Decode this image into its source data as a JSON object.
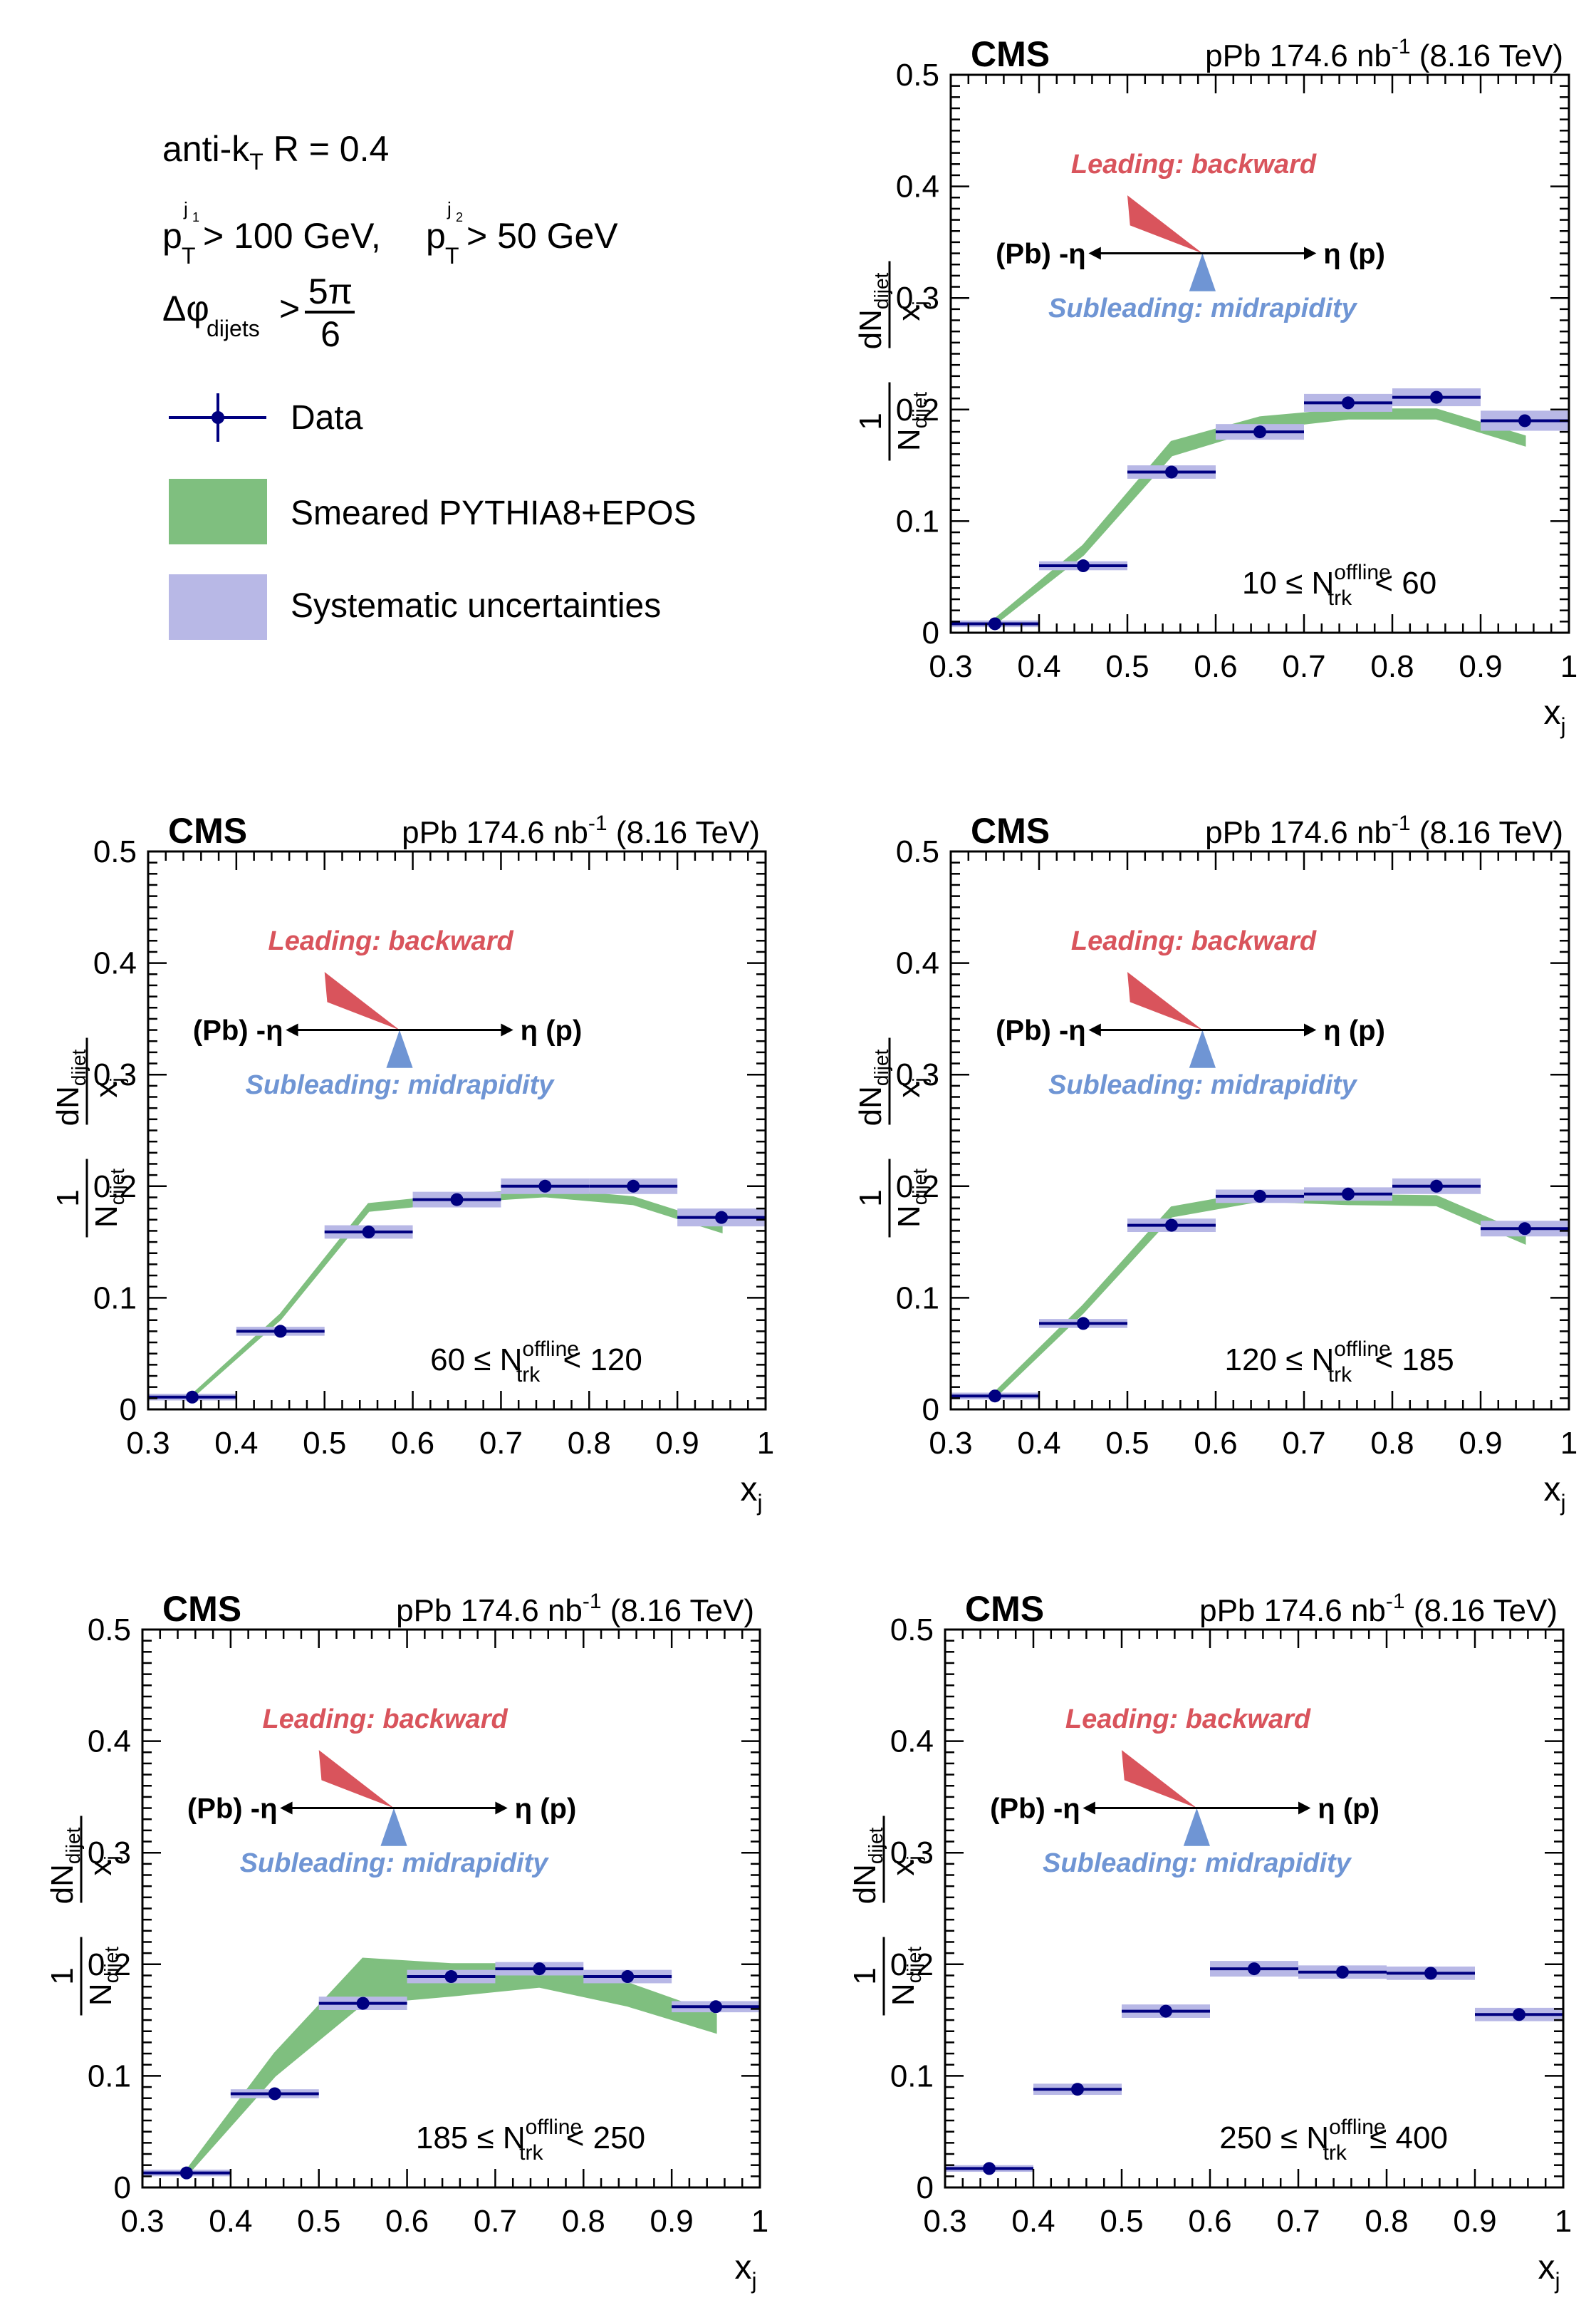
{
  "legend": {
    "algo_prefix": "anti-k",
    "algo_sub": "T",
    "algo_suffix": " R = 0.4",
    "cut_p": "p",
    "cut_j1_sup": "j",
    "cut_j1_supsub": "1",
    "cut_sub": "T",
    "cut_1_text": " > 100 GeV, ",
    "cut_j2_sup": "j",
    "cut_j2_supsub": "2",
    "cut_2_text": " > 50 GeV",
    "dphi_prefix": "Δφ",
    "dphi_sub": "dijets",
    "dphi_gt": ">",
    "dphi_num": "5π",
    "dphi_den": "6",
    "items": [
      {
        "label": "Data",
        "color": "#000080"
      },
      {
        "label": "Smeared PYTHIA8+EPOS",
        "color": "#7fbf7f"
      },
      {
        "label": "Systematic uncertainties",
        "color": "#b8b8e6"
      }
    ]
  },
  "common": {
    "cms": "CMS",
    "lumi_prefix": "pPb 174.6 nb",
    "lumi_sup": "-1",
    "lumi_suffix": " (8.16 TeV)",
    "leading": "Leading: backward",
    "subleading": "Subleading: midrapidity",
    "pb_label": "(Pb) -η",
    "p_label": "η (p)",
    "ylabel_num": "dN",
    "ylabel_num_sub": "dijet",
    "ylabel_den": "x",
    "ylabel_den_sub": "j",
    "ylabel_one": "1",
    "ylabel_N": "N",
    "ylabel_N_sub": "dijet",
    "xlabel": "x",
    "xlabel_sub": "j",
    "n_label": "N",
    "n_sup": "offline",
    "n_sub": "trk",
    "xticks": [
      "0.3",
      "0.4",
      "0.5",
      "0.6",
      "0.7",
      "0.8",
      "0.9",
      "1"
    ],
    "yticks": [
      "0",
      "0.1",
      "0.2",
      "0.3",
      "0.4",
      "0.5"
    ]
  },
  "colors": {
    "data": "#000080",
    "syst": "#b8b8e6",
    "model": "#7fbf7f",
    "leading": "#d9545c",
    "subleading": "#6f95d4"
  },
  "chart_data": [
    {
      "type": "scatter",
      "range_lo": "10 ≤ ",
      "range_hi": " < 60",
      "xlim": [
        0.3,
        1.0
      ],
      "ylim": [
        0,
        0.5
      ],
      "x": [
        0.35,
        0.45,
        0.55,
        0.65,
        0.75,
        0.85,
        0.95
      ],
      "series": [
        {
          "name": "Data",
          "values": [
            0.008,
            0.06,
            0.144,
            0.18,
            0.206,
            0.211,
            0.19
          ],
          "syst": [
            0.003,
            0.004,
            0.006,
            0.007,
            0.008,
            0.008,
            0.009
          ]
        },
        {
          "name": "Smeared PYTHIA8+EPOS",
          "x": [
            0.35,
            0.45,
            0.55,
            0.65,
            0.75,
            0.85,
            0.95
          ],
          "values": [
            0.01,
            0.074,
            0.165,
            0.188,
            0.196,
            0.196,
            0.172
          ],
          "band": [
            0.002,
            0.004,
            0.006,
            0.005,
            0.004,
            0.004,
            0.004
          ]
        }
      ]
    },
    {
      "type": "scatter",
      "range_lo": "60 ≤ ",
      "range_hi": " < 120",
      "xlim": [
        0.3,
        1.0
      ],
      "ylim": [
        0,
        0.5
      ],
      "x": [
        0.35,
        0.45,
        0.55,
        0.65,
        0.75,
        0.85,
        0.95
      ],
      "series": [
        {
          "name": "Data",
          "values": [
            0.011,
            0.07,
            0.159,
            0.188,
            0.2,
            0.2,
            0.172
          ],
          "syst": [
            0.003,
            0.004,
            0.006,
            0.007,
            0.007,
            0.007,
            0.008
          ]
        },
        {
          "name": "Smeared PYTHIA8+EPOS",
          "x": [
            0.35,
            0.45,
            0.55,
            0.65,
            0.75,
            0.85,
            0.95
          ],
          "values": [
            0.012,
            0.083,
            0.181,
            0.189,
            0.194,
            0.187,
            0.162
          ],
          "band": [
            0.001,
            0.002,
            0.003,
            0.003,
            0.003,
            0.003,
            0.003
          ]
        }
      ]
    },
    {
      "type": "scatter",
      "range_lo": "120 ≤ ",
      "range_hi": " < 185",
      "xlim": [
        0.3,
        1.0
      ],
      "ylim": [
        0,
        0.5
      ],
      "x": [
        0.35,
        0.45,
        0.55,
        0.65,
        0.75,
        0.85,
        0.95
      ],
      "series": [
        {
          "name": "Data",
          "values": [
            0.012,
            0.077,
            0.165,
            0.191,
            0.193,
            0.2,
            0.162
          ],
          "syst": [
            0.003,
            0.004,
            0.006,
            0.006,
            0.006,
            0.007,
            0.007
          ]
        },
        {
          "name": "Smeared PYTHIA8+EPOS",
          "x": [
            0.35,
            0.45,
            0.55,
            0.65,
            0.75,
            0.85,
            0.95
          ],
          "values": [
            0.013,
            0.09,
            0.177,
            0.191,
            0.188,
            0.187,
            0.153
          ],
          "band": [
            0.002,
            0.003,
            0.004,
            0.004,
            0.004,
            0.004,
            0.004
          ]
        }
      ]
    },
    {
      "type": "scatter",
      "range_lo": "185 ≤ ",
      "range_hi": " < 250",
      "xlim": [
        0.3,
        1.0
      ],
      "ylim": [
        0,
        0.5
      ],
      "x": [
        0.35,
        0.45,
        0.55,
        0.65,
        0.75,
        0.85,
        0.95
      ],
      "series": [
        {
          "name": "Data",
          "values": [
            0.013,
            0.084,
            0.165,
            0.189,
            0.196,
            0.189,
            0.162
          ],
          "syst": [
            0.003,
            0.004,
            0.006,
            0.006,
            0.006,
            0.006,
            0.005
          ]
        },
        {
          "name": "Smeared PYTHIA8+EPOS",
          "x": [
            0.35,
            0.45,
            0.55,
            0.65,
            0.75,
            0.85,
            0.95
          ],
          "values": [
            0.013,
            0.11,
            0.185,
            0.186,
            0.19,
            0.173,
            0.147
          ],
          "band": [
            0.002,
            0.01,
            0.02,
            0.014,
            0.01,
            0.01,
            0.008
          ]
        }
      ]
    },
    {
      "type": "scatter",
      "range_lo": "250 ≤ ",
      "range_hi": " ≤ 400",
      "xlim": [
        0.3,
        1.0
      ],
      "ylim": [
        0,
        0.5
      ],
      "x": [
        0.35,
        0.45,
        0.55,
        0.65,
        0.75,
        0.85,
        0.95
      ],
      "series": [
        {
          "name": "Data",
          "values": [
            0.017,
            0.088,
            0.158,
            0.196,
            0.193,
            0.192,
            0.155
          ],
          "syst": [
            0.003,
            0.005,
            0.006,
            0.007,
            0.006,
            0.006,
            0.006
          ]
        }
      ]
    }
  ]
}
